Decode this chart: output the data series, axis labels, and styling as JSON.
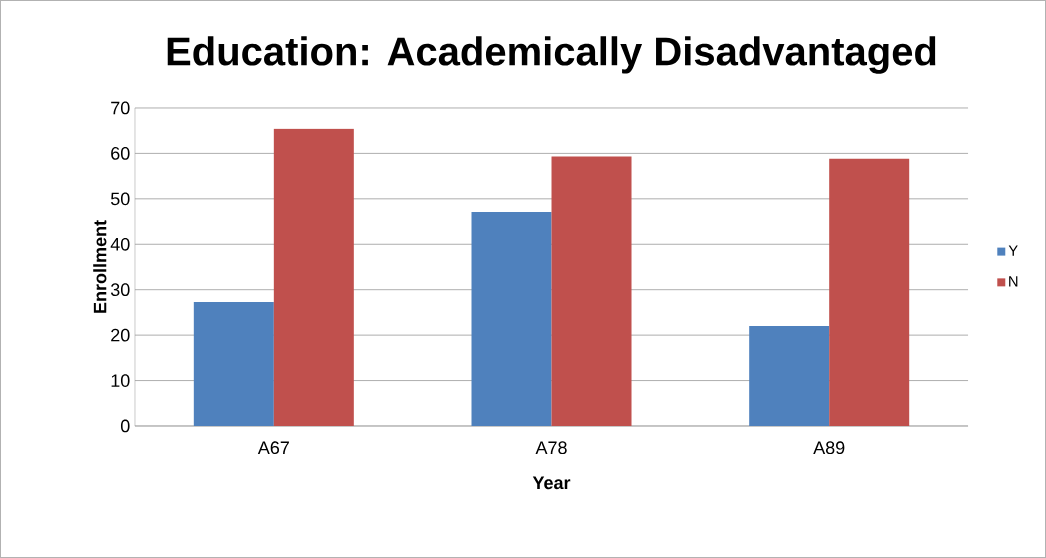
{
  "chart_data": {
    "type": "bar",
    "title": "Education: Academically Disadvantaged",
    "xlabel": "Year",
    "ylabel": "Enrollment",
    "categories": [
      "A67",
      "A78",
      "A89"
    ],
    "series": [
      {
        "name": "Y",
        "color": "#4f81bd",
        "values": [
          27.3,
          47.1,
          22.0
        ]
      },
      {
        "name": "N",
        "color": "#c0504d",
        "values": [
          65.4,
          59.3,
          58.8
        ]
      }
    ],
    "ylim": [
      0,
      70
    ],
    "yticks": [
      0,
      10,
      20,
      30,
      40,
      50,
      60,
      70
    ],
    "grid": "y",
    "legend": "right"
  }
}
